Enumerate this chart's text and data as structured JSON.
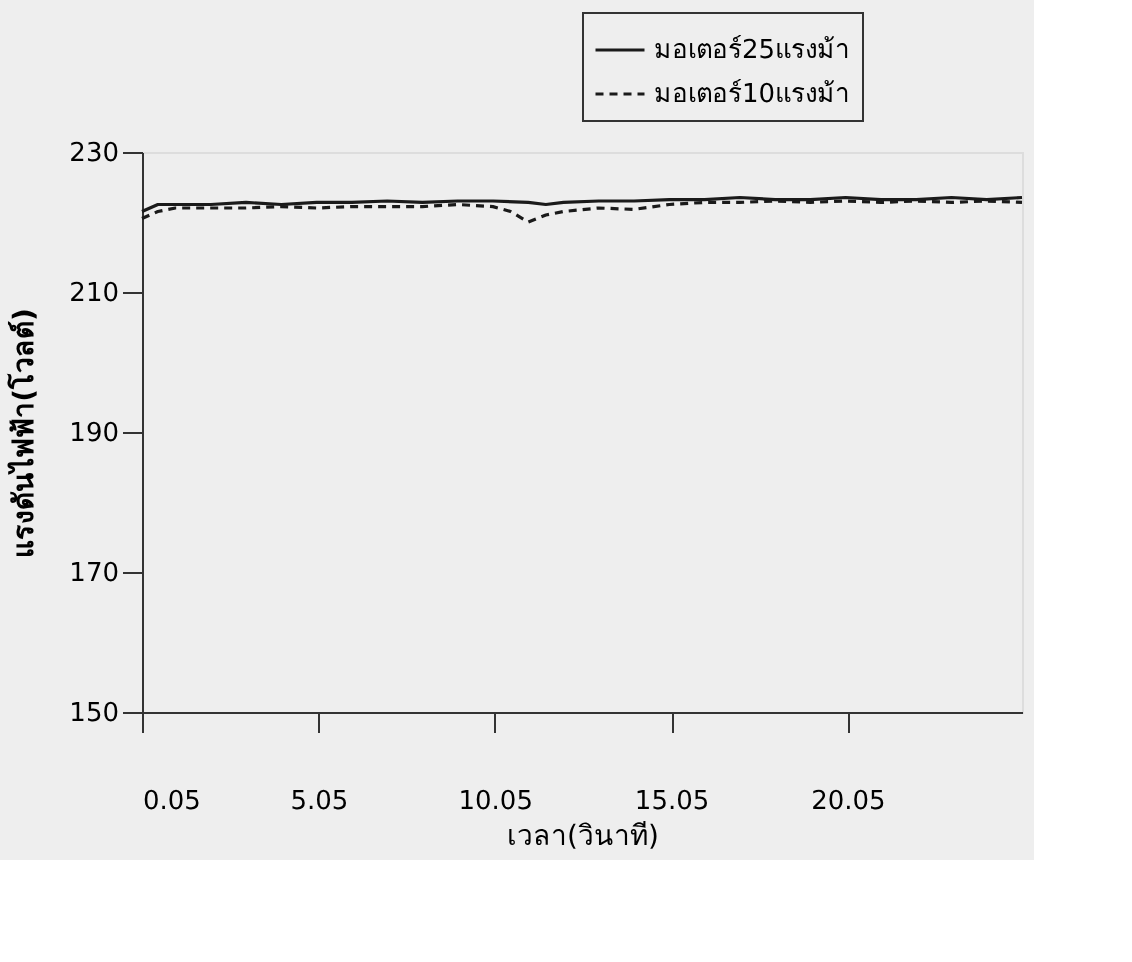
{
  "chart_data": {
    "type": "line",
    "xlabel": "เวลา(วินาที)",
    "ylabel": "แรงดันไฟฟ้า(โวลต์)",
    "xlim": [
      0.05,
      25
    ],
    "xticks": [
      0.05,
      5.05,
      10.05,
      15.05,
      20.05
    ],
    "ylim": [
      150,
      230
    ],
    "yticks": [
      150,
      170,
      190,
      210,
      230
    ],
    "grid": false,
    "legend": "top right",
    "marker": "none",
    "series": [
      {
        "name": "มอเตอร์25แรงม้า",
        "color": "#1a1a1a",
        "line_style": "solid",
        "x": [
          0.05,
          0.5,
          1,
          2,
          3,
          4,
          5,
          6,
          7,
          8,
          9,
          10,
          11,
          11.5,
          12,
          13,
          14,
          15,
          16,
          17,
          18,
          19,
          20,
          21,
          22,
          23,
          24,
          25
        ],
        "values": [
          221.5,
          222.5,
          222.5,
          222.5,
          222.8,
          222.5,
          222.8,
          222.8,
          223,
          222.8,
          223,
          223,
          222.8,
          222.5,
          222.8,
          223,
          223,
          223.2,
          223.2,
          223.5,
          223.2,
          223.2,
          223.5,
          223.2,
          223.2,
          223.5,
          223.2,
          223.5
        ]
      },
      {
        "name": "มอเตอร์10แรงม้า",
        "color": "#1a1a1a",
        "line_style": "dashed",
        "x": [
          0.05,
          0.5,
          1,
          2,
          3,
          4,
          5,
          6,
          7,
          8,
          9,
          10,
          10.5,
          11,
          11.5,
          12,
          13,
          14,
          15,
          16,
          17,
          18,
          19,
          20,
          21,
          22,
          23,
          24,
          25
        ],
        "values": [
          220.5,
          221.5,
          222,
          222,
          222,
          222.2,
          222,
          222.2,
          222.2,
          222.2,
          222.5,
          222.2,
          221.5,
          220,
          221,
          221.5,
          222,
          221.8,
          222.5,
          222.8,
          222.8,
          223,
          222.8,
          223,
          222.8,
          223,
          222.8,
          223,
          222.8
        ]
      }
    ]
  }
}
